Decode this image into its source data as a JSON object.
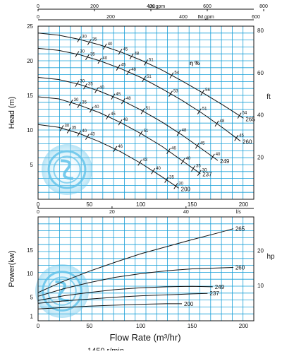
{
  "colors": {
    "grid": "#1aa0d8",
    "frame": "#111111",
    "curve": "#111111",
    "text": "#111111",
    "watermark": "#5ec2ea"
  },
  "chart_data": [
    {
      "type": "line",
      "title": "",
      "xlabel": "",
      "ylabel": "Head (m)",
      "xlim": [
        0,
        210
      ],
      "ylim": [
        0,
        25
      ],
      "x_ticks": [
        0,
        50,
        100,
        150,
        200
      ],
      "y_ticks": [
        5,
        10,
        15,
        20,
        25
      ],
      "top_axes": [
        {
          "label": "Us.gpm",
          "ticks": [
            "0",
            "200",
            "400",
            "600",
            "800"
          ]
        },
        {
          "label": "IM.gpm",
          "ticks": [
            "0",
            "200",
            "400",
            "600"
          ]
        }
      ],
      "right_axis": {
        "label": "ft",
        "ticks": [
          "20",
          "40",
          "60",
          "80"
        ]
      },
      "efficiency_label": "η %",
      "series": [
        {
          "name": "265",
          "x": [
            0,
            20,
            40,
            60,
            80,
            100,
            120,
            140,
            160,
            180,
            200
          ],
          "y": [
            24,
            23.7,
            23.1,
            22.3,
            21.3,
            20.1,
            18.7,
            17.1,
            15.4,
            13.6,
            11.7
          ]
        },
        {
          "name": "260",
          "x": [
            0,
            20,
            40,
            60,
            80,
            100,
            120,
            140,
            160,
            180,
            197
          ],
          "y": [
            21.8,
            21.5,
            20.9,
            20,
            18.9,
            17.6,
            16,
            14.3,
            12.4,
            10.3,
            8.4
          ]
        },
        {
          "name": "249",
          "x": [
            0,
            20,
            40,
            60,
            80,
            100,
            120,
            140,
            160,
            175
          ],
          "y": [
            17.6,
            17.3,
            16.6,
            15.6,
            14.4,
            12.9,
            11.2,
            9.3,
            7.2,
            5.6
          ]
        },
        {
          "name": "237",
          "x": [
            0,
            20,
            40,
            60,
            80,
            100,
            120,
            140,
            158
          ],
          "y": [
            14.8,
            14.5,
            13.6,
            12.5,
            11.1,
            9.5,
            7.7,
            5.6,
            3.7
          ]
        },
        {
          "name": "200",
          "x": [
            0,
            20,
            40,
            60,
            80,
            100,
            120,
            137
          ],
          "y": [
            10.8,
            10.4,
            9.5,
            8.3,
            6.9,
            5.2,
            3.3,
            1.6
          ]
        }
      ],
      "efficiency_marks": [
        {
          "curve": "265",
          "points": [
            {
              "x": 40,
              "label": "30"
            },
            {
              "x": 50,
              "label": "35"
            },
            {
              "x": 65,
              "label": "40"
            },
            {
              "x": 80,
              "label": "45"
            },
            {
              "x": 91,
              "label": "48"
            },
            {
              "x": 105,
              "label": "51"
            },
            {
              "x": 130,
              "label": "54"
            },
            {
              "x": 160,
              "label": "56"
            },
            {
              "x": 196,
              "label": "54"
            }
          ]
        },
        {
          "curve": "260",
          "points": [
            {
              "x": 38,
              "label": "30"
            },
            {
              "x": 48,
              "label": "35"
            },
            {
              "x": 60,
              "label": "40"
            },
            {
              "x": 78,
              "label": "45"
            },
            {
              "x": 88,
              "label": "48"
            },
            {
              "x": 103,
              "label": "51"
            },
            {
              "x": 129,
              "label": "53"
            },
            {
              "x": 157,
              "label": "51"
            },
            {
              "x": 174,
              "label": "48"
            },
            {
              "x": 193,
              "label": "45"
            }
          ]
        },
        {
          "curve": "249",
          "points": [
            {
              "x": 38,
              "label": "30"
            },
            {
              "x": 46,
              "label": "35"
            },
            {
              "x": 57,
              "label": "40"
            },
            {
              "x": 73,
              "label": "45"
            },
            {
              "x": 83,
              "label": "48"
            },
            {
              "x": 102,
              "label": "51"
            },
            {
              "x": 137,
              "label": "48"
            },
            {
              "x": 155,
              "label": "45"
            },
            {
              "x": 170,
              "label": "40"
            }
          ]
        },
        {
          "curve": "237",
          "points": [
            {
              "x": 32,
              "label": "30"
            },
            {
              "x": 40,
              "label": "35"
            },
            {
              "x": 52,
              "label": "40"
            },
            {
              "x": 68,
              "label": "45"
            },
            {
              "x": 80,
              "label": "48"
            },
            {
              "x": 100,
              "label": "51"
            },
            {
              "x": 127,
              "label": "46"
            },
            {
              "x": 141,
              "label": "40"
            },
            {
              "x": 151,
              "label": "35"
            },
            {
              "x": 157,
              "label": "30"
            }
          ]
        },
        {
          "curve": "200",
          "points": [
            {
              "x": 23,
              "label": "30"
            },
            {
              "x": 30,
              "label": "35"
            },
            {
              "x": 40,
              "label": "40"
            },
            {
              "x": 48,
              "label": "43"
            },
            {
              "x": 75,
              "label": "46"
            },
            {
              "x": 99,
              "label": "43"
            },
            {
              "x": 112,
              "label": "40"
            },
            {
              "x": 125,
              "label": "35"
            },
            {
              "x": 134,
              "label": "30"
            }
          ]
        }
      ]
    },
    {
      "type": "line",
      "title": "",
      "xlabel": "Flow Rate (m³/hr)",
      "ylabel": "Power(kw)",
      "xlim": [
        0,
        210
      ],
      "ylim": [
        0,
        22
      ],
      "x_ticks": [
        0,
        50,
        100,
        150,
        200
      ],
      "y_ticks": [
        1,
        5,
        10,
        15
      ],
      "top_axis": {
        "label": "l/s",
        "ticks": [
          "0",
          "20",
          "40"
        ]
      },
      "right_axis": {
        "label": "hp",
        "ticks": [
          "10",
          "20"
        ]
      },
      "series": [
        {
          "name": "265",
          "x": [
            0,
            25,
            50,
            75,
            100,
            125,
            150,
            175,
            190
          ],
          "y": [
            6,
            8.4,
            10.5,
            12.4,
            14.2,
            15.7,
            17.2,
            18.6,
            19.5
          ]
        },
        {
          "name": "260",
          "x": [
            0,
            25,
            50,
            75,
            100,
            125,
            150,
            175,
            190
          ],
          "y": [
            5.2,
            6.8,
            8.1,
            9.2,
            10,
            10.6,
            11,
            11.2,
            11.3
          ]
        },
        {
          "name": "249",
          "x": [
            0,
            25,
            50,
            75,
            100,
            125,
            150,
            170
          ],
          "y": [
            4.3,
            5.3,
            6,
            6.6,
            7,
            7.2,
            7.3,
            7.2
          ]
        },
        {
          "name": "237",
          "x": [
            0,
            25,
            50,
            75,
            100,
            125,
            150,
            165
          ],
          "y": [
            3.7,
            4.2,
            4.6,
            5,
            5.3,
            5.5,
            5.7,
            5.8
          ]
        },
        {
          "name": "200",
          "x": [
            0,
            25,
            50,
            75,
            100,
            125,
            140
          ],
          "y": [
            2.5,
            2.8,
            3.1,
            3.3,
            3.5,
            3.6,
            3.6
          ]
        }
      ]
    }
  ],
  "bottom_text": "1450 r/min"
}
